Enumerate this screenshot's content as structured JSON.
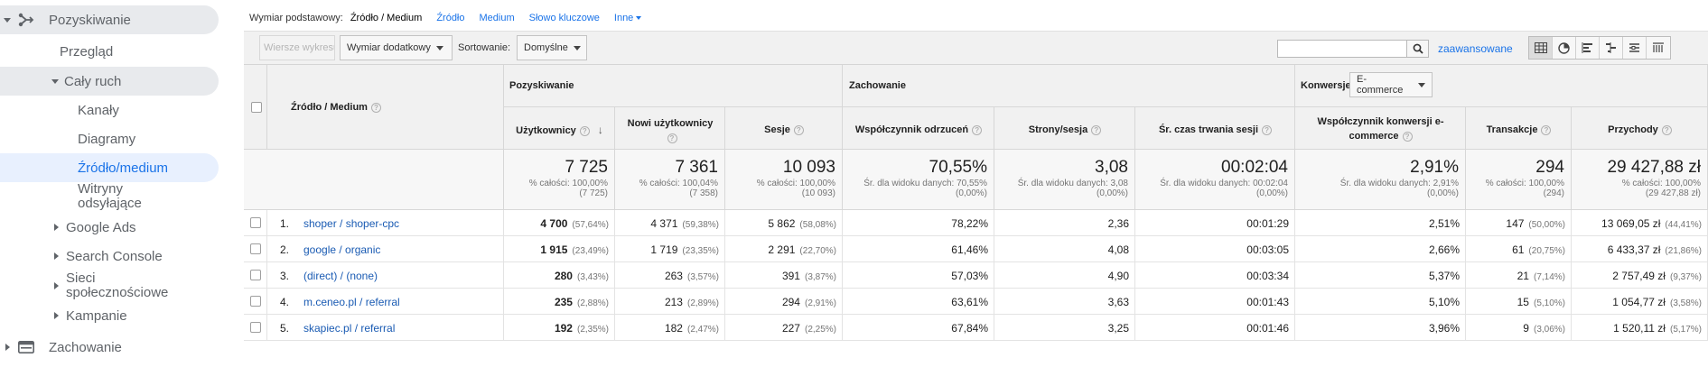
{
  "sidebar": {
    "acquisition": "Pozyskiwanie",
    "overview": "Przegląd",
    "all_traffic": "Cały ruch",
    "channels": "Kanały",
    "diagrams": "Diagramy",
    "source_medium": "Źródło/medium",
    "referrals": "Witryny odsyłające",
    "google_ads": "Google Ads",
    "search_console": "Search Console",
    "social": "Sieci społecznościowe",
    "campaigns": "Kampanie",
    "behavior": "Zachowanie"
  },
  "topbar": {
    "primary_label": "Wymiar podstawowy:",
    "primary_current": "Źródło / Medium",
    "links": [
      "Źródło",
      "Medium",
      "Słowo kluczowe"
    ],
    "more": "Inne"
  },
  "toolbar": {
    "plot_rows": "Wiersze wykresu",
    "secondary_dimension": "Wymiar dodatkowy",
    "sort_label": "Sortowanie:",
    "sort_value": "Domyślne",
    "search_value": "",
    "advanced": "zaawansowane"
  },
  "table": {
    "dimension_header": "Źródło / Medium",
    "groups": {
      "acquisition": "Pozyskiwanie",
      "behavior": "Zachowanie",
      "conversions": "Konwersje",
      "conversion_select": "E-commerce"
    },
    "columns": [
      "Użytkownicy",
      "Nowi użytkownicy",
      "Sesje",
      "Współczynnik odrzuceń",
      "Strony/sesja",
      "Śr. czas trwania sesji",
      "Współczynnik konwersji e-commerce",
      "Transakcje",
      "Przychody"
    ],
    "totals": [
      {
        "main": "7 725",
        "sub1": "% całości: 100,00%",
        "sub2": "(7 725)"
      },
      {
        "main": "7 361",
        "sub1": "% całości: 100,04%",
        "sub2": "(7 358)"
      },
      {
        "main": "10 093",
        "sub1": "% całości: 100,00%",
        "sub2": "(10 093)"
      },
      {
        "main": "70,55%",
        "sub1": "Śr. dla widoku danych: 70,55%",
        "sub2": "(0,00%)"
      },
      {
        "main": "3,08",
        "sub1": "Śr. dla widoku danych: 3,08",
        "sub2": "(0,00%)"
      },
      {
        "main": "00:02:04",
        "sub1": "Śr. dla widoku danych: 00:02:04",
        "sub2": "(0,00%)"
      },
      {
        "main": "2,91%",
        "sub1": "Śr. dla widoku danych: 2,91%",
        "sub2": "(0,00%)"
      },
      {
        "main": "294",
        "sub1": "% całości: 100,00%",
        "sub2": "(294)"
      },
      {
        "main": "29 427,88 zł",
        "sub1": "% całości: 100,00%",
        "sub2": "(29 427,88 zł)"
      }
    ],
    "rows": [
      {
        "n": "1.",
        "source": "shoper / shoper-cpc",
        "users": "4 700",
        "users_pct": "(57,64%)",
        "new": "4 371",
        "new_pct": "(59,38%)",
        "sessions": "5 862",
        "sessions_pct": "(58,08%)",
        "bounce": "78,22%",
        "pages": "2,36",
        "duration": "00:01:29",
        "conv": "2,51%",
        "trans": "147",
        "trans_pct": "(50,00%)",
        "rev": "13 069,05 zł",
        "rev_pct": "(44,41%)"
      },
      {
        "n": "2.",
        "source": "google / organic",
        "users": "1 915",
        "users_pct": "(23,49%)",
        "new": "1 719",
        "new_pct": "(23,35%)",
        "sessions": "2 291",
        "sessions_pct": "(22,70%)",
        "bounce": "61,46%",
        "pages": "4,08",
        "duration": "00:03:05",
        "conv": "2,66%",
        "trans": "61",
        "trans_pct": "(20,75%)",
        "rev": "6 433,37 zł",
        "rev_pct": "(21,86%)"
      },
      {
        "n": "3.",
        "source": "(direct) / (none)",
        "users": "280",
        "users_pct": "(3,43%)",
        "new": "263",
        "new_pct": "(3,57%)",
        "sessions": "391",
        "sessions_pct": "(3,87%)",
        "bounce": "57,03%",
        "pages": "4,90",
        "duration": "00:03:34",
        "conv": "5,37%",
        "trans": "21",
        "trans_pct": "(7,14%)",
        "rev": "2 757,49 zł",
        "rev_pct": "(9,37%)"
      },
      {
        "n": "4.",
        "source": "m.ceneo.pl / referral",
        "users": "235",
        "users_pct": "(2,88%)",
        "new": "213",
        "new_pct": "(2,89%)",
        "sessions": "294",
        "sessions_pct": "(2,91%)",
        "bounce": "63,61%",
        "pages": "3,63",
        "duration": "00:01:43",
        "conv": "5,10%",
        "trans": "15",
        "trans_pct": "(5,10%)",
        "rev": "1 054,77 zł",
        "rev_pct": "(3,58%)"
      },
      {
        "n": "5.",
        "source": "skapiec.pl / referral",
        "users": "192",
        "users_pct": "(2,35%)",
        "new": "182",
        "new_pct": "(2,47%)",
        "sessions": "227",
        "sessions_pct": "(2,25%)",
        "bounce": "67,84%",
        "pages": "3,25",
        "duration": "00:01:46",
        "conv": "3,96%",
        "trans": "9",
        "trans_pct": "(3,06%)",
        "rev": "1 520,11 zł",
        "rev_pct": "(5,17%)"
      }
    ]
  }
}
